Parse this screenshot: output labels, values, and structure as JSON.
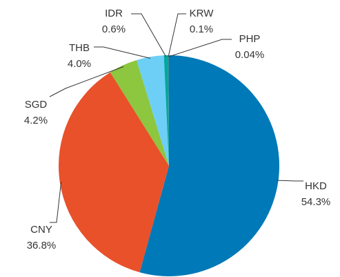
{
  "chart_data": {
    "type": "pie",
    "categories": [
      "HKD",
      "CNY",
      "SGD",
      "THB",
      "IDR",
      "KRW",
      "PHP"
    ],
    "values": [
      54.3,
      36.8,
      4.2,
      4.0,
      0.6,
      0.1,
      0.04
    ],
    "value_labels": [
      "54.3%",
      "36.8%",
      "4.2%",
      "4.0%",
      "0.6%",
      "0.1%",
      "0.04%"
    ],
    "colors": [
      "#0079b8",
      "#e8512a",
      "#8dc63f",
      "#6dcff6",
      "#00a99d",
      "#1a5e8c",
      "#2bb5a0"
    ]
  }
}
